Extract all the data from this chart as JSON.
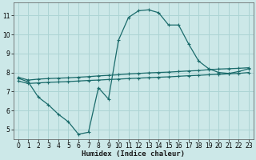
{
  "xlabel": "Humidex (Indice chaleur)",
  "bg_color": "#cce8e8",
  "grid_color": "#add4d4",
  "line_color": "#1a6b6b",
  "xlim": [
    -0.5,
    23.5
  ],
  "ylim": [
    4.5,
    11.7
  ],
  "xticks": [
    0,
    1,
    2,
    3,
    4,
    5,
    6,
    7,
    8,
    9,
    10,
    11,
    12,
    13,
    14,
    15,
    16,
    17,
    18,
    19,
    20,
    21,
    22,
    23
  ],
  "yticks": [
    5,
    6,
    7,
    8,
    9,
    10,
    11
  ],
  "curve1_x": [
    0,
    1,
    2,
    3,
    4,
    5,
    6,
    7,
    8,
    9,
    10,
    11,
    12,
    13,
    14,
    15,
    16,
    17,
    18,
    19,
    20,
    21,
    22,
    23
  ],
  "curve1_y": [
    7.7,
    7.5,
    6.7,
    6.3,
    5.8,
    5.4,
    4.75,
    4.85,
    7.2,
    6.6,
    9.7,
    10.9,
    11.25,
    11.3,
    11.15,
    10.5,
    10.5,
    9.5,
    8.6,
    8.2,
    8.0,
    7.95,
    8.05,
    8.2
  ],
  "curve2_x": [
    0,
    1,
    2,
    3,
    4,
    5,
    6,
    7,
    8,
    9,
    10,
    11,
    12,
    13,
    14,
    15,
    16,
    17,
    18,
    19,
    20,
    21,
    22,
    23
  ],
  "curve2_y": [
    7.75,
    7.6,
    7.65,
    7.68,
    7.7,
    7.72,
    7.75,
    7.78,
    7.82,
    7.85,
    7.88,
    7.92,
    7.95,
    7.98,
    8.0,
    8.02,
    8.05,
    8.08,
    8.1,
    8.15,
    8.18,
    8.2,
    8.22,
    8.25
  ],
  "curve3_x": [
    0,
    1,
    2,
    3,
    4,
    5,
    6,
    7,
    8,
    9,
    10,
    11,
    12,
    13,
    14,
    15,
    16,
    17,
    18,
    19,
    20,
    21,
    22,
    23
  ],
  "curve3_y": [
    7.55,
    7.42,
    7.45,
    7.48,
    7.5,
    7.52,
    7.55,
    7.58,
    7.6,
    7.63,
    7.65,
    7.68,
    7.7,
    7.73,
    7.75,
    7.77,
    7.8,
    7.83,
    7.85,
    7.88,
    7.9,
    7.93,
    7.95,
    8.0
  ]
}
